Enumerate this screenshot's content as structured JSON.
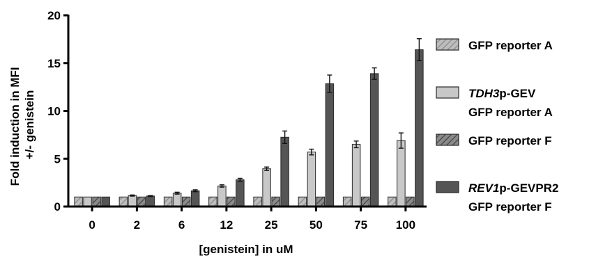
{
  "chart_data": {
    "type": "bar",
    "xlabel": "[genistein] in uM",
    "ylabel_lines": [
      "Fold induction in MFI",
      "+/- genistein"
    ],
    "categories": [
      "0",
      "2",
      "6",
      "12",
      "25",
      "50",
      "75",
      "100"
    ],
    "ylim": [
      0,
      20
    ],
    "yticks": [
      0,
      5,
      10,
      15,
      20
    ],
    "grid": false,
    "legend_position": "right",
    "series": [
      {
        "legend": [
          {
            "text": "GFP reporter A"
          }
        ],
        "style": "hatched",
        "fill": "#bdbdbd",
        "values": [
          1.0,
          1.0,
          1.0,
          1.0,
          1.0,
          1.0,
          1.0,
          1.0
        ],
        "errors": [
          0,
          0,
          0,
          0,
          0,
          0,
          0,
          0
        ]
      },
      {
        "legend": [
          {
            "italic": "TDH3",
            "text": "p-GEV"
          },
          {
            "text": "GFP reporter A"
          }
        ],
        "style": "solid",
        "fill": "#c8c8c8",
        "values": [
          1.0,
          1.15,
          1.4,
          2.15,
          3.95,
          5.7,
          6.5,
          6.9
        ],
        "errors": [
          0,
          0.06,
          0.1,
          0.12,
          0.18,
          0.3,
          0.35,
          0.8
        ]
      },
      {
        "legend": [
          {
            "text": "GFP reporter F"
          }
        ],
        "style": "hatched",
        "fill": "#6e6e6e",
        "values": [
          1.0,
          1.0,
          1.0,
          1.0,
          1.0,
          1.0,
          1.0,
          1.0
        ],
        "errors": [
          0,
          0,
          0,
          0,
          0,
          0,
          0,
          0
        ]
      },
      {
        "legend": [
          {
            "italic": "REV1",
            "text": "p-GEVPR2"
          },
          {
            "text": "GFP reporter F"
          }
        ],
        "style": "solid",
        "fill": "#555555",
        "values": [
          1.0,
          1.1,
          1.65,
          2.8,
          7.25,
          12.85,
          13.9,
          16.4
        ],
        "errors": [
          0,
          0.05,
          0.1,
          0.15,
          0.65,
          0.9,
          0.6,
          1.15
        ]
      }
    ]
  }
}
